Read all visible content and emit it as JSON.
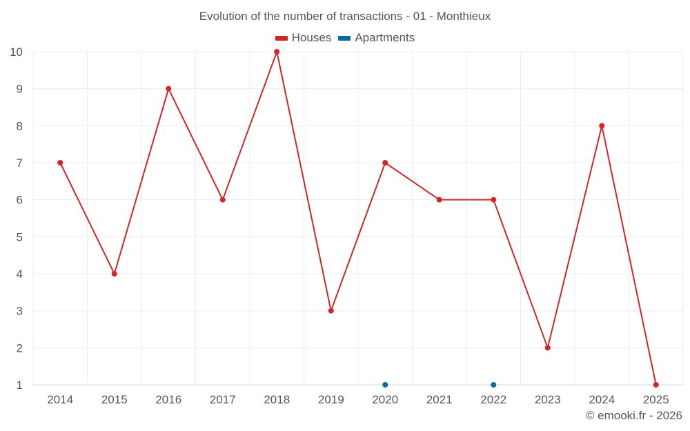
{
  "chart_data": {
    "type": "line",
    "title": "Evolution of the number of transactions - 01 - Monthieux",
    "categories": [
      "2014",
      "2015",
      "2016",
      "2017",
      "2018",
      "2019",
      "2020",
      "2021",
      "2022",
      "2023",
      "2024",
      "2025"
    ],
    "series": [
      {
        "name": "Houses",
        "color": "#d32426",
        "values": [
          7,
          4,
          9,
          6,
          10,
          3,
          7,
          6,
          6,
          2,
          8,
          1
        ],
        "connected": true
      },
      {
        "name": "Apartments",
        "color": "#0a6aa1",
        "values": [
          null,
          null,
          null,
          null,
          null,
          null,
          1,
          null,
          1,
          null,
          null,
          null
        ],
        "connected": false
      }
    ],
    "ylim": [
      1,
      10
    ],
    "yticks": [
      "1",
      "2",
      "3",
      "4",
      "5",
      "6",
      "7",
      "8",
      "9",
      "10"
    ],
    "xlabel": "",
    "ylabel": "",
    "grid": true,
    "legend_position": "top-center"
  },
  "credit": "© emooki.fr - 2026"
}
